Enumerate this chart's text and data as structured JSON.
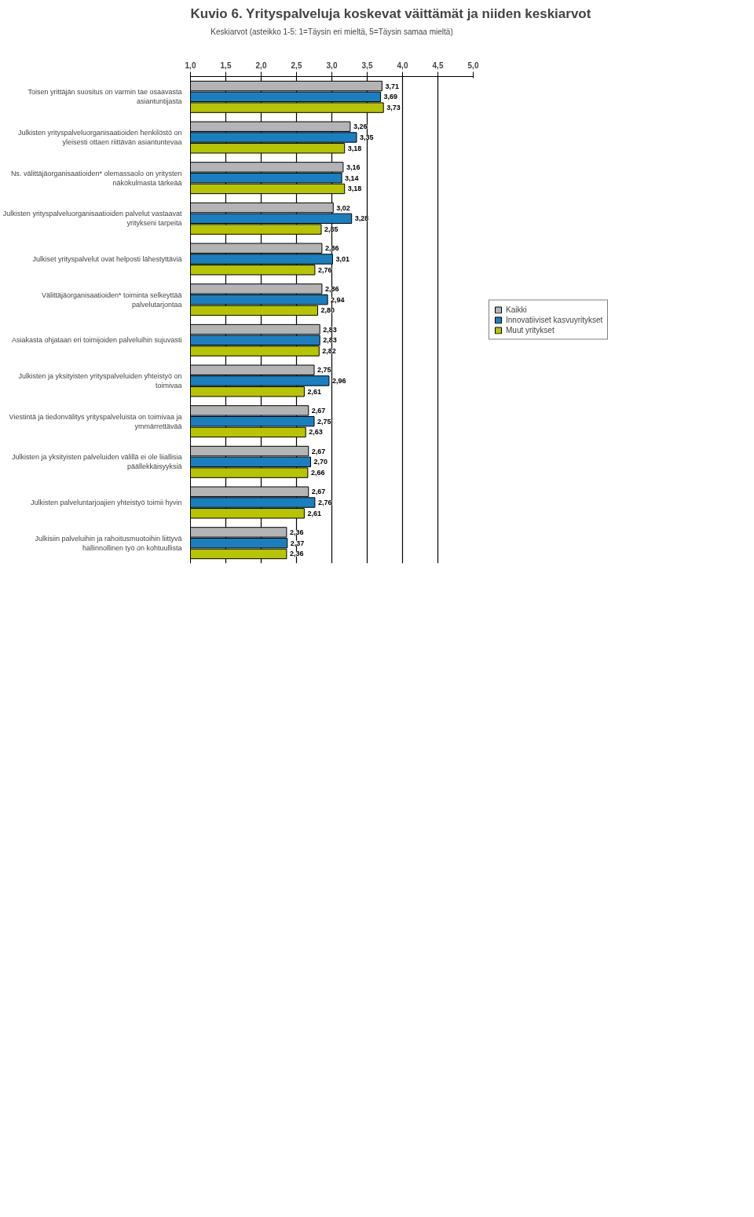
{
  "chart_data": {
    "type": "bar",
    "orientation": "horizontal",
    "title": "Kuvio 6. Yrityspalveluja koskevat väittämät ja niiden keskiarvot",
    "xlabel": "Keskiarvot (asteikko 1-5: 1=Täysin eri mieltä, 5=Täysin samaa mieltä)",
    "categories": [
      "Toisen yrittäjän suositus on varmin tae osaavasta asiantuntijasta",
      "Julkisten yrityspalveluorganisaatioiden henkilöstö on yleisesti ottaen riittävän asiantuntevaa",
      "Ns. välittäjäorganisaatioiden* olemassaolo on yritysten näkökulmasta tärkeää",
      "Julkisten yrityspalveluorganisaatioiden palvelut vastaavat yritykseni tarpeita",
      "Julkiset yrityspalvelut ovat helposti lähestyttäviä",
      "Välittäjäorganisaatioiden* toiminta selkeyttää palvelutarjontaa",
      "Asiakasta ohjataan eri toimijoiden palveluihin sujuvasti",
      "Julkisten ja yksityisten yrityspalveluiden yhteistyö on toimivaa",
      "Viestintä ja tiedonvälitys yrityspalveluista on toimivaa ja ymmärrettävää",
      "Julkisten ja yksityisten palveluiden välillä ei ole liiallisia päällekkäisyyksiä",
      "Julkisten palveluntarjoajien yhteistyö toimii hyvin",
      "Julkisiin palveluihin ja rahoitusmuotoihin liittyvä hallinnollinen työ on kohtuullista"
    ],
    "series": [
      {
        "name": "Kaikki",
        "color": "#b4b4b4",
        "values": [
          3.71,
          3.26,
          3.16,
          3.02,
          2.86,
          2.86,
          2.83,
          2.75,
          2.67,
          2.67,
          2.67,
          2.36
        ],
        "value_labels": [
          "3,71",
          "3,26",
          "3,16",
          "3,02",
          "2,86",
          "2,86",
          "2,83",
          "2,75",
          "2,67",
          "2,67",
          "2,67",
          "2,36"
        ]
      },
      {
        "name": "Innovatiiviset kasvuyritykset",
        "color": "#1a7fc1",
        "values": [
          3.69,
          3.35,
          3.14,
          3.28,
          3.01,
          2.94,
          2.83,
          2.96,
          2.75,
          2.7,
          2.76,
          2.37
        ],
        "value_labels": [
          "3,69",
          "3,35",
          "3,14",
          "3,28",
          "3,01",
          "2,94",
          "2,83",
          "2,96",
          "2,75",
          "2,70",
          "2,76",
          "2,37"
        ]
      },
      {
        "name": "Muut yritykset",
        "color": "#b8c400",
        "values": [
          3.73,
          3.18,
          3.18,
          2.85,
          2.76,
          2.8,
          2.82,
          2.61,
          2.63,
          2.66,
          2.61,
          2.36
        ],
        "value_labels": [
          "3,73",
          "3,18",
          "3,18",
          "2,85",
          "2,76",
          "2,80",
          "2,82",
          "2,61",
          "2,63",
          "2,66",
          "2,61",
          "2,36"
        ]
      }
    ],
    "xlim": [
      1,
      5
    ],
    "xticks": [
      {
        "value": 1,
        "label": "1,0"
      },
      {
        "value": 1.5,
        "label": "1,5"
      },
      {
        "value": 2,
        "label": "2,0"
      },
      {
        "value": 2.5,
        "label": "2,5"
      },
      {
        "value": 3,
        "label": "3,0"
      },
      {
        "value": 3.5,
        "label": "3,5"
      },
      {
        "value": 4,
        "label": "4,0"
      },
      {
        "value": 4.5,
        "label": "4,5"
      },
      {
        "value": 5,
        "label": "5,0"
      }
    ],
    "grid": "x",
    "legend": "right"
  }
}
